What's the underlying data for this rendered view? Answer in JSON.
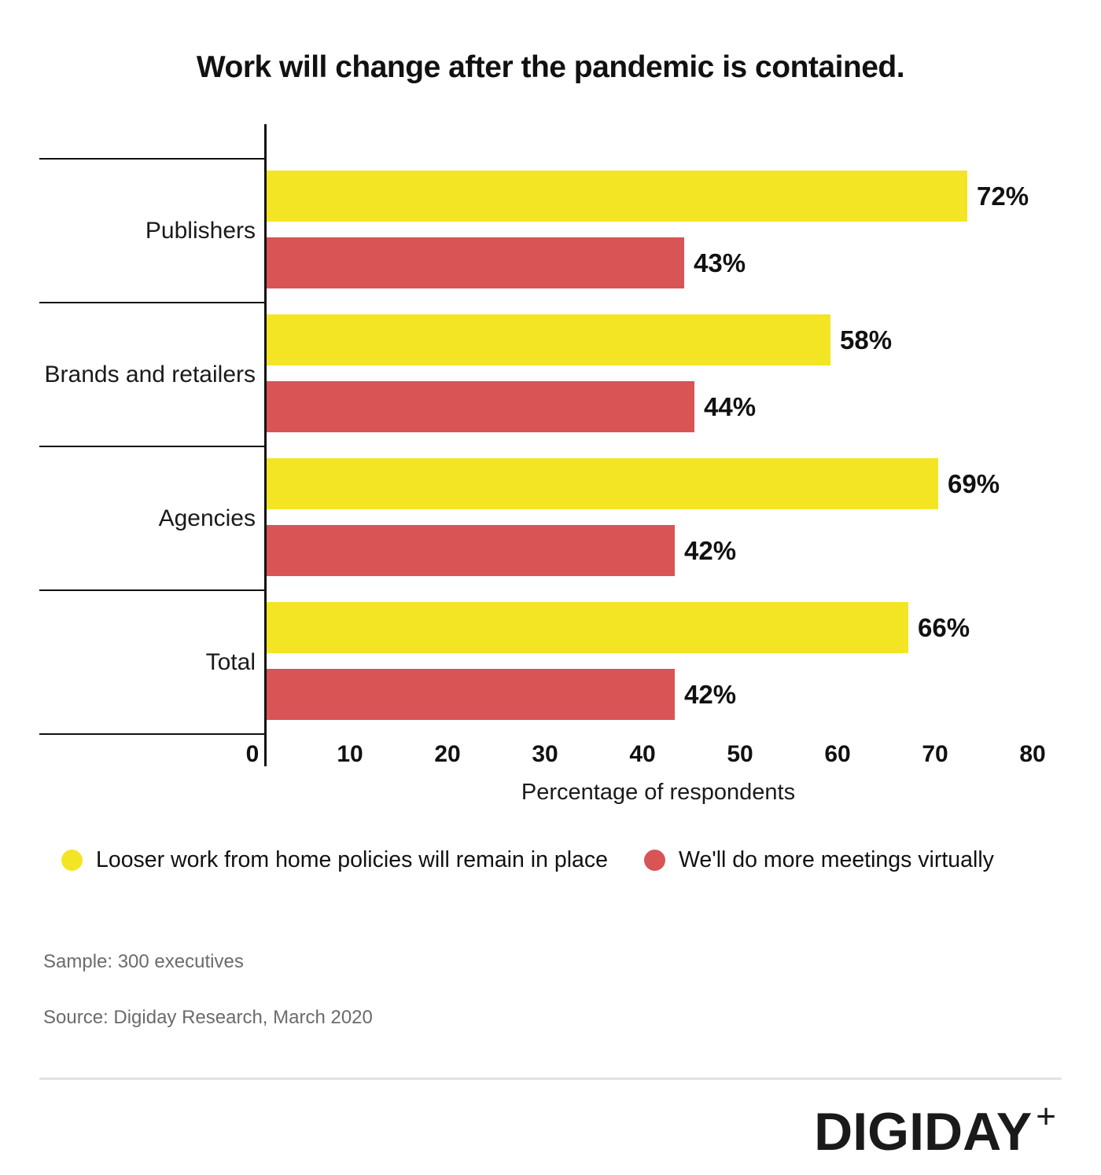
{
  "chart_data": {
    "type": "bar",
    "orientation": "horizontal",
    "title": "Work will change after the pandemic is contained.",
    "categories": [
      "Publishers",
      "Brands and retailers",
      "Agencies",
      "Total"
    ],
    "series": [
      {
        "name": "Looser work from home policies will remain in place",
        "color": "#F3E524",
        "values": [
          72,
          58,
          69,
          66
        ]
      },
      {
        "name": "We'll do more meetings virtually",
        "color": "#D85455",
        "values": [
          43,
          44,
          42,
          42
        ]
      }
    ],
    "value_suffix": "%",
    "xlabel": "Percentage of respondents",
    "xlim": [
      0,
      80
    ],
    "xticks": [
      0,
      10,
      20,
      30,
      40,
      50,
      60,
      70,
      80
    ],
    "grid": false,
    "legend_position": "bottom"
  },
  "footer": {
    "sample": "Sample: 300 executives",
    "source": "Source: Digiday Research, March 2020"
  },
  "logo": {
    "text": "DIGIDAY",
    "plus": "+"
  }
}
